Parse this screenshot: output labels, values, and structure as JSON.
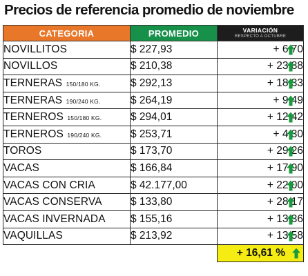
{
  "title": "Precios de referencia promedio de noviembre",
  "headers": {
    "categoria": "CATEGORIA",
    "promedio": "PROMEDIO",
    "variacion": "VARIACIÓN",
    "variacion_sub": "RESPECTO A OCTUBRE"
  },
  "colors": {
    "categoria_header": "#e8772a",
    "promedio_header": "#17914a",
    "variacion_header": "#1d1d1d",
    "arrow_up": "#1a9a3e",
    "total_highlight": "#f4ec12"
  },
  "rows": [
    {
      "category": "NOVILLITOS",
      "detail": "",
      "price": "$ 227,93",
      "variation": "+ 6,70",
      "icon": "arrow-up-icon"
    },
    {
      "category": "NOVILLOS",
      "detail": "",
      "price": "$ 210,38",
      "variation": "+ 23,88",
      "icon": "arrow-up-icon"
    },
    {
      "category": "TERNERAS",
      "detail": "150/180 KG.",
      "price": "$ 292,13",
      "variation": "+ 18,33",
      "icon": "arrow-up-icon"
    },
    {
      "category": "TERNERAS",
      "detail": "190/240 KG.",
      "price": "$ 264,19",
      "variation": "+ 9,49",
      "icon": "arrow-up-icon"
    },
    {
      "category": "TERNEROS",
      "detail": "150/180 KG.",
      "price": "$ 294,01",
      "variation": "+ 12,42",
      "icon": "arrow-up-icon"
    },
    {
      "category": "TERNEROS",
      "detail": "190/240 KG.",
      "price": "$ 253,71",
      "variation": "+ 4,30",
      "icon": "arrow-up-icon"
    },
    {
      "category": "TOROS",
      "detail": "",
      "price": "$ 173,70",
      "variation": "+ 29,26",
      "icon": "arrow-up-icon"
    },
    {
      "category": "VACAS",
      "detail": "",
      "price": "$ 166,84",
      "variation": "+ 17,90",
      "icon": "arrow-up-icon"
    },
    {
      "category": "VACAS CON CRIA",
      "detail": "",
      "price": "$ 42.177,00",
      "variation": "+ 22,00",
      "icon": "arrow-up-icon"
    },
    {
      "category": "VACAS CONSERVA",
      "detail": "",
      "price": "$ 133,80",
      "variation": "+ 28,17",
      "icon": "arrow-up-icon"
    },
    {
      "category": "VACAS INVERNADA",
      "detail": "",
      "price": "$ 155,16",
      "variation": "+ 13,36",
      "icon": "arrow-up-icon"
    },
    {
      "category": "VAQUILLAS",
      "detail": "",
      "price": "$ 213,92",
      "variation": "+ 13,58",
      "icon": "arrow-up-icon"
    }
  ],
  "total": {
    "variation": "+ 16,61 %",
    "icon": "arrow-up-icon"
  }
}
